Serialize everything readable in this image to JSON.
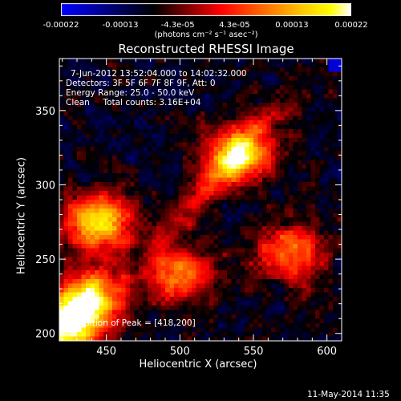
{
  "colorbar": {
    "ticks": [
      "-0.00022",
      "-0.00013",
      "-4.3e-05",
      "4.3e-05",
      "0.00013",
      "0.00022"
    ],
    "tick_values": [
      -0.00022,
      -0.00013,
      -4.3e-05,
      4.3e-05,
      0.00013,
      0.00022
    ],
    "unit_label": "(photons cm⁻² s⁻¹ asec⁻²)",
    "colors": [
      "#0000ff",
      "#000000",
      "#ff0000",
      "#ffff00",
      "#ffffff"
    ]
  },
  "chart_data": {
    "type": "heatmap",
    "title": "Reconstructed RHESSI Image",
    "xlabel": "Heliocentric X (arcsec)",
    "ylabel": "Heliocentric Y (arcsec)",
    "xlim": [
      418,
      610
    ],
    "ylim": [
      195,
      385
    ],
    "xticks": [
      450,
      500,
      550,
      600
    ],
    "yticks": [
      200,
      250,
      300,
      350
    ],
    "annotations": [
      "7-Jun-2012 13:52:04.000 to 14:02:32.000",
      "Detectors: 3F 5F 6F 7F 8F 9F, Att: 0",
      "Energy Range: 25.0 - 50.0 keV",
      "Clean     Total counts: 3.16E+04",
      "Position of Peak = [418,200]"
    ],
    "peak_position": [
      418,
      200
    ],
    "bright_regions": [
      {
        "x": 425,
        "y": 205,
        "level": 1.0
      },
      {
        "x": 440,
        "y": 225,
        "level": 0.8
      },
      {
        "x": 445,
        "y": 275,
        "level": 0.85
      },
      {
        "x": 540,
        "y": 320,
        "level": 0.8
      },
      {
        "x": 500,
        "y": 240,
        "level": 0.6
      },
      {
        "x": 575,
        "y": 255,
        "level": 0.6
      }
    ]
  },
  "footer": {
    "timestamp": "11-May-2014 11:35"
  }
}
